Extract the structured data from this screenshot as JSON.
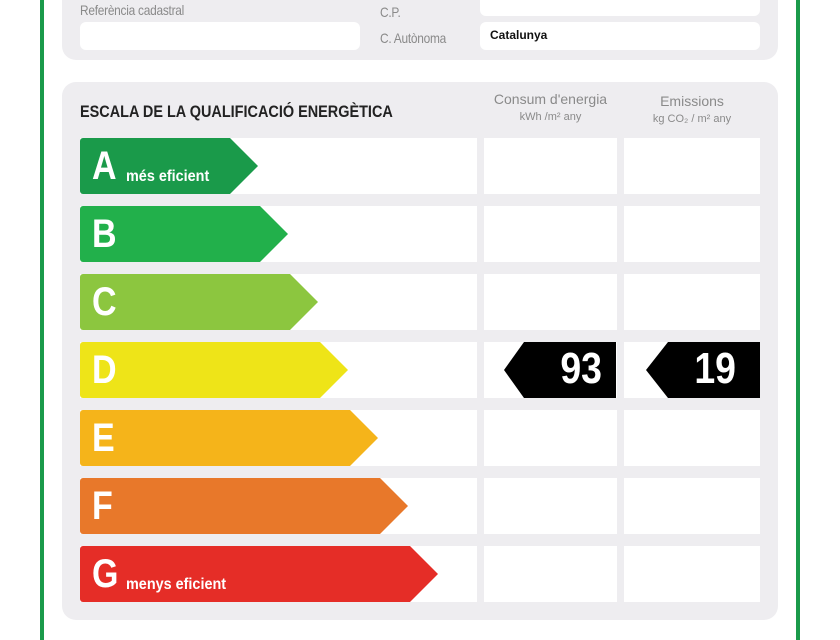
{
  "header": {
    "ref_label": "Referència cadastral",
    "cp_label": "C.P.",
    "ca_label": "C. Autònoma",
    "ca_value": "Catalunya"
  },
  "scale": {
    "title": "ESCALA DE LA QUALIFICACIÓ ENERGÈTICA",
    "col_energy": {
      "title": "Consum d'energia",
      "unit": "kWh /m² any"
    },
    "col_emissions": {
      "title": "Emissions",
      "unit": "kg CO₂ / m² any"
    },
    "classes": [
      {
        "letter": "A",
        "note": "més eficient",
        "color": "#1a9a4a"
      },
      {
        "letter": "B",
        "note": "",
        "color": "#22b04b"
      },
      {
        "letter": "C",
        "note": "",
        "color": "#8cc63f"
      },
      {
        "letter": "D",
        "note": "",
        "color": "#eee418"
      },
      {
        "letter": "E",
        "note": "",
        "color": "#f5b41a"
      },
      {
        "letter": "F",
        "note": "",
        "color": "#e8782a"
      },
      {
        "letter": "G",
        "note": "menys eficient",
        "color": "#e52d27"
      }
    ],
    "rating_class": "D",
    "energy_value": "93",
    "emissions_value": "19"
  }
}
